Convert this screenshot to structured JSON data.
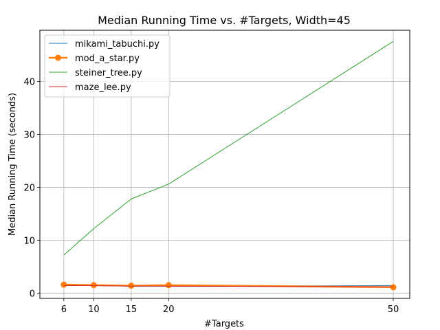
{
  "chart_data": {
    "type": "line",
    "title": "Median Running Time vs. #Targets, Width=45",
    "xlabel": "#Targets",
    "ylabel": "Median Running Time (seconds)",
    "x": [
      6,
      10,
      15,
      20,
      50
    ],
    "xticks": [
      6,
      10,
      15,
      20,
      50
    ],
    "yticks": [
      0,
      10,
      20,
      30,
      40
    ],
    "xlim": [
      2.8,
      52.2
    ],
    "ylim": [
      -1.0,
      49.7
    ],
    "grid": true,
    "legend_position": "top-left",
    "series": [
      {
        "name": "mikami_tabuchi.py",
        "values": [
          1.5,
          1.4,
          1.3,
          1.3,
          1.4
        ],
        "color": "#1f77b4",
        "marker": "none",
        "line_width": 1
      },
      {
        "name": "mod_a_star.py",
        "values": [
          1.6,
          1.5,
          1.4,
          1.5,
          1.1
        ],
        "color": "#ff7f0e",
        "marker": "circle",
        "line_width": 2.5
      },
      {
        "name": "steiner_tree.py",
        "values": [
          7.2,
          12.2,
          17.8,
          20.6,
          47.6
        ],
        "color": "#2ca02c",
        "marker": "none",
        "line_width": 1
      },
      {
        "name": "maze_lee.py",
        "values": [
          1.4,
          1.4,
          1.3,
          1.3,
          1.2
        ],
        "color": "#d62728",
        "marker": "none",
        "line_width": 1
      }
    ]
  }
}
